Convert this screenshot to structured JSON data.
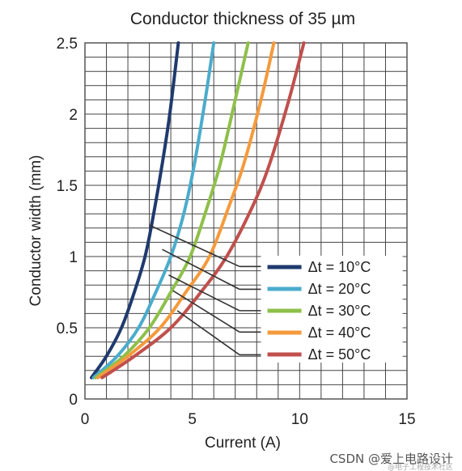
{
  "chart_data": {
    "type": "line",
    "title": "Conductor thickness of 35 µm",
    "xlabel": "Current (A)",
    "ylabel": "Conductor width (mm)",
    "xlim": [
      0,
      15
    ],
    "ylim": [
      0,
      2.5
    ],
    "x_ticks": [
      "0",
      "5",
      "10",
      "15"
    ],
    "y_ticks": [
      "0",
      "0.5",
      "1",
      "1.5",
      "2",
      "2.5"
    ],
    "grid": true,
    "legend_position": "bottom-right",
    "series": [
      {
        "name": "Δt = 10°C",
        "color": "#1f3a6e",
        "points": [
          [
            0.3,
            0.15
          ],
          [
            1.0,
            0.3
          ],
          [
            1.7,
            0.5
          ],
          [
            2.3,
            0.75
          ],
          [
            2.8,
            1.0
          ],
          [
            3.2,
            1.3
          ],
          [
            3.6,
            1.65
          ],
          [
            3.95,
            2.0
          ],
          [
            4.35,
            2.5
          ]
        ]
      },
      {
        "name": "Δt = 20°C",
        "color": "#4aaccc",
        "points": [
          [
            0.4,
            0.15
          ],
          [
            1.5,
            0.3
          ],
          [
            2.5,
            0.5
          ],
          [
            3.3,
            0.75
          ],
          [
            4.0,
            1.0
          ],
          [
            4.6,
            1.3
          ],
          [
            5.1,
            1.65
          ],
          [
            5.6,
            2.1
          ],
          [
            6.0,
            2.5
          ]
        ]
      },
      {
        "name": "Δt = 30°C",
        "color": "#8ec04a",
        "points": [
          [
            0.5,
            0.15
          ],
          [
            1.8,
            0.3
          ],
          [
            3.0,
            0.5
          ],
          [
            4.0,
            0.75
          ],
          [
            4.9,
            1.0
          ],
          [
            5.7,
            1.35
          ],
          [
            6.3,
            1.65
          ],
          [
            7.0,
            2.1
          ],
          [
            7.6,
            2.5
          ]
        ]
      },
      {
        "name": "Δt = 40°C",
        "color": "#f59a3c",
        "points": [
          [
            0.6,
            0.15
          ],
          [
            2.0,
            0.3
          ],
          [
            3.5,
            0.5
          ],
          [
            4.7,
            0.75
          ],
          [
            5.8,
            1.0
          ],
          [
            6.7,
            1.35
          ],
          [
            7.4,
            1.65
          ],
          [
            8.2,
            2.1
          ],
          [
            8.8,
            2.5
          ]
        ]
      },
      {
        "name": "Δt = 50°C",
        "color": "#c0504d",
        "points": [
          [
            0.8,
            0.15
          ],
          [
            2.3,
            0.3
          ],
          [
            4.0,
            0.5
          ],
          [
            5.4,
            0.75
          ],
          [
            6.6,
            1.0
          ],
          [
            7.8,
            1.35
          ],
          [
            8.6,
            1.65
          ],
          [
            9.5,
            2.1
          ],
          [
            10.2,
            2.5
          ]
        ]
      }
    ]
  },
  "watermark": {
    "text": "CSDN @爱上电路设计",
    "subtext": "@电子工程技术社区"
  }
}
